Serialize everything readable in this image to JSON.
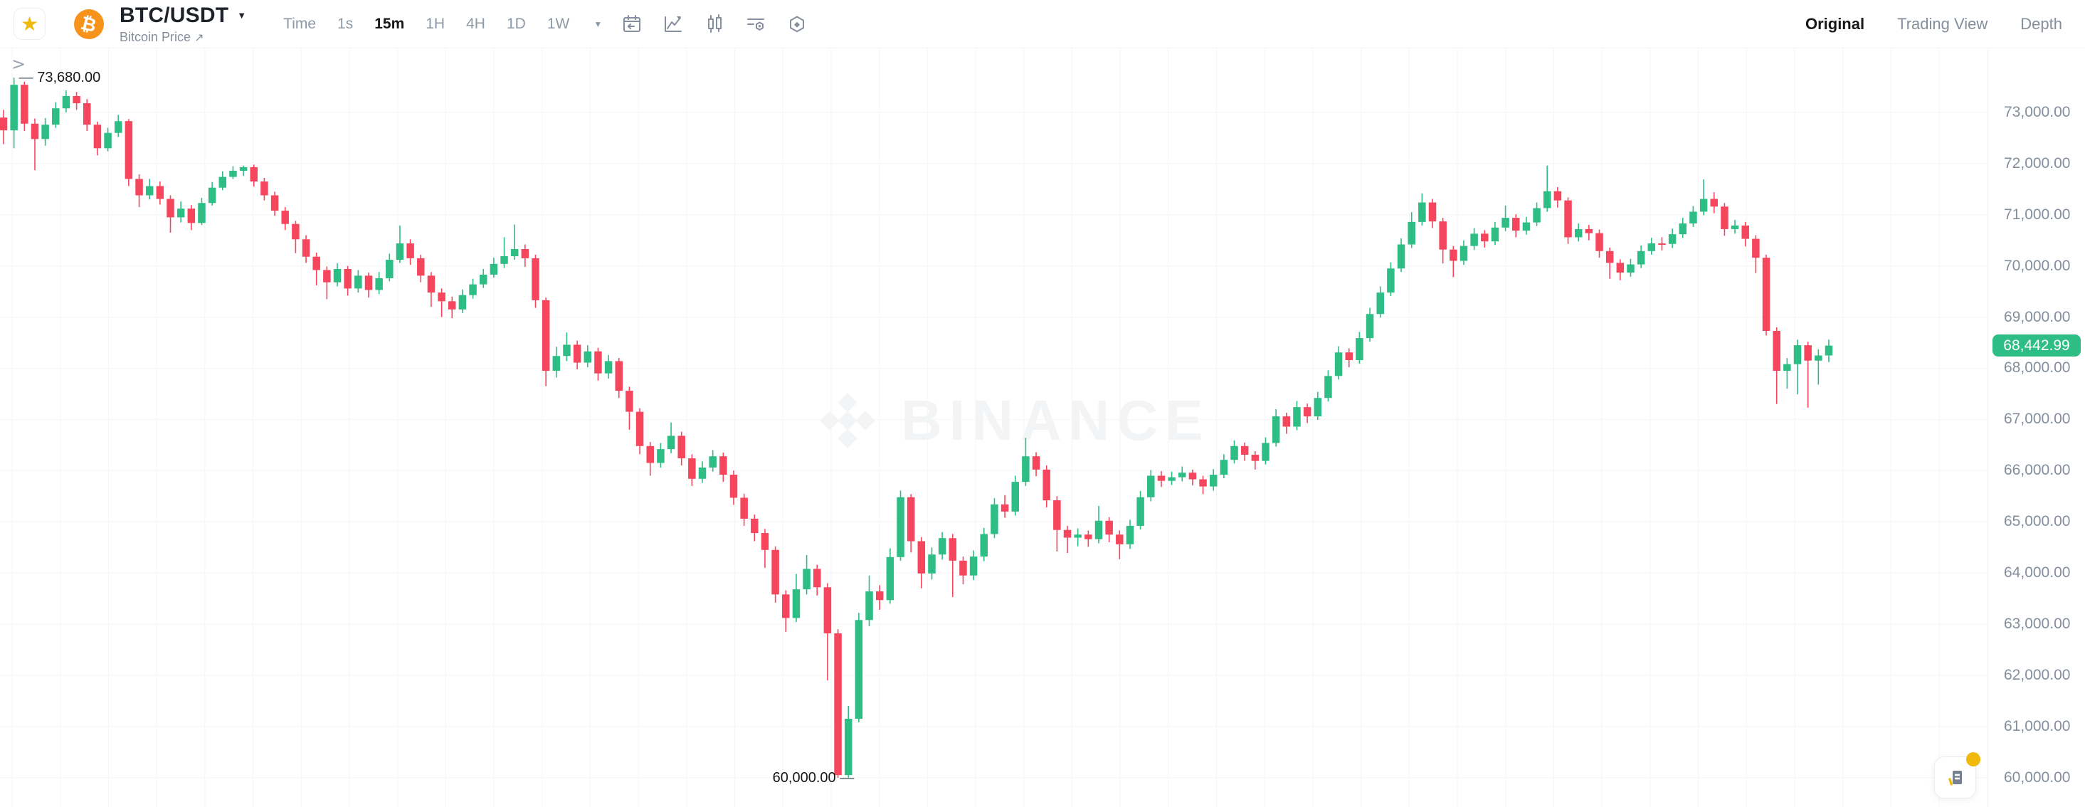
{
  "header": {
    "symbol": "BTC/USDT",
    "subtitle": "Bitcoin Price",
    "subtitle_link_arrow": "↗",
    "favorite_icon": "★",
    "btc_glyph": "₿",
    "dropdown_caret": "▼"
  },
  "toolbar": {
    "time_label": "Time",
    "intervals": [
      "1s",
      "15m",
      "1H",
      "4H",
      "1D",
      "1W"
    ],
    "selected_interval": "15m",
    "more_caret": "▼",
    "icons": [
      "calendar-icon",
      "chart-style-icon",
      "candlestick-icon",
      "indicators-icon",
      "settings-icon"
    ]
  },
  "view_tabs": [
    {
      "label": "Original",
      "active": true
    },
    {
      "label": "Trading View",
      "active": false
    },
    {
      "label": "Depth",
      "active": false
    }
  ],
  "watermark": {
    "text": "BINANCE"
  },
  "expander": {
    "glyph": ">"
  },
  "price_axis": {
    "last_price": 68442.99,
    "last_price_label": "68,442.99",
    "badge_color": "#2EBD85"
  },
  "annotations": {
    "session_high": {
      "label": "73,680.00",
      "marker": "—",
      "price": 73680,
      "candle_index": 1
    },
    "session_low": {
      "label": "60,000.00",
      "marker": "—",
      "price": 60000,
      "candle_index": 81
    }
  },
  "chart_data": {
    "type": "candlestick",
    "symbol": "BTC/USDT",
    "interval": "15m",
    "title": "",
    "xlabel": "",
    "ylabel": "",
    "grid": true,
    "legend": false,
    "up_color": "#2EBD85",
    "down_color": "#F6465D",
    "grid_color": "#f5f5f5",
    "axis_text_color": "#848E9C",
    "ylim": [
      59426,
      75197
    ],
    "y_ticks": [
      73000,
      72000,
      71000,
      70000,
      69000,
      68000,
      67000,
      66000,
      65000,
      64000,
      63000,
      62000,
      61000,
      60000
    ],
    "plot_right": 2794,
    "x_start": 5,
    "x_pitch": 14.657,
    "body_width": 10.5,
    "wick_width": 1.6,
    "grid_x_offset": 17,
    "grid_x_spacing": 67.7,
    "candles": [
      [
        72900,
        73050,
        72380,
        72650
      ],
      [
        72650,
        73680,
        72300,
        73540
      ],
      [
        73540,
        73600,
        72640,
        72780
      ],
      [
        72780,
        72880,
        71870,
        72480
      ],
      [
        72480,
        72890,
        72350,
        72760
      ],
      [
        72760,
        73200,
        72700,
        73080
      ],
      [
        73080,
        73430,
        73000,
        73320
      ],
      [
        73320,
        73400,
        73050,
        73180
      ],
      [
        73180,
        73260,
        72640,
        72760
      ],
      [
        72760,
        72820,
        72160,
        72300
      ],
      [
        72300,
        72700,
        72240,
        72600
      ],
      [
        72600,
        72950,
        72520,
        72830
      ],
      [
        72830,
        72870,
        71560,
        71700
      ],
      [
        71700,
        71790,
        71150,
        71380
      ],
      [
        71380,
        71700,
        71300,
        71560
      ],
      [
        71560,
        71650,
        71200,
        71310
      ],
      [
        71310,
        71380,
        70650,
        70950
      ],
      [
        70950,
        71260,
        70850,
        71120
      ],
      [
        71120,
        71190,
        70700,
        70840
      ],
      [
        70840,
        71330,
        70800,
        71230
      ],
      [
        71230,
        71640,
        71180,
        71530
      ],
      [
        71530,
        71850,
        71480,
        71740
      ],
      [
        71740,
        71950,
        71700,
        71860
      ],
      [
        71860,
        71960,
        71760,
        71930
      ],
      [
        71930,
        71980,
        71550,
        71650
      ],
      [
        71650,
        71720,
        71280,
        71380
      ],
      [
        71380,
        71450,
        70980,
        71080
      ],
      [
        71080,
        71150,
        70700,
        70820
      ],
      [
        70820,
        70880,
        70250,
        70520
      ],
      [
        70520,
        70600,
        70060,
        70180
      ],
      [
        70180,
        70260,
        69620,
        69920
      ],
      [
        69920,
        69990,
        69350,
        69680
      ],
      [
        69680,
        70050,
        69600,
        69940
      ],
      [
        69940,
        70000,
        69420,
        69560
      ],
      [
        69560,
        69920,
        69480,
        69810
      ],
      [
        69810,
        69870,
        69380,
        69530
      ],
      [
        69530,
        69880,
        69450,
        69760
      ],
      [
        69760,
        70240,
        69700,
        70120
      ],
      [
        70120,
        70790,
        70060,
        70440
      ],
      [
        70440,
        70520,
        70020,
        70150
      ],
      [
        70150,
        70220,
        69680,
        69810
      ],
      [
        69810,
        69880,
        69200,
        69480
      ],
      [
        69480,
        69560,
        69000,
        69310
      ],
      [
        69310,
        69400,
        68980,
        69150
      ],
      [
        69150,
        69540,
        69080,
        69430
      ],
      [
        69430,
        69750,
        69360,
        69640
      ],
      [
        69640,
        69940,
        69570,
        69830
      ],
      [
        69830,
        70160,
        69770,
        70040
      ],
      [
        70040,
        70560,
        69960,
        70190
      ],
      [
        70190,
        70810,
        70120,
        70330
      ],
      [
        70330,
        70420,
        69980,
        70150
      ],
      [
        70150,
        70220,
        69180,
        69330
      ],
      [
        69330,
        69380,
        67650,
        67950
      ],
      [
        67950,
        68420,
        67820,
        68240
      ],
      [
        68240,
        68700,
        68140,
        68460
      ],
      [
        68460,
        68540,
        67980,
        68110
      ],
      [
        68110,
        68450,
        68020,
        68330
      ],
      [
        68330,
        68400,
        67760,
        67900
      ],
      [
        67900,
        68260,
        67800,
        68140
      ],
      [
        68140,
        68200,
        67420,
        67560
      ],
      [
        67560,
        67640,
        66800,
        67150
      ],
      [
        67150,
        67220,
        66320,
        66480
      ],
      [
        66480,
        66560,
        65900,
        66150
      ],
      [
        66150,
        66540,
        66060,
        66420
      ],
      [
        66420,
        66940,
        66340,
        66680
      ],
      [
        66680,
        66760,
        66100,
        66240
      ],
      [
        66240,
        66320,
        65700,
        65840
      ],
      [
        65840,
        66180,
        65760,
        66060
      ],
      [
        66060,
        66400,
        65980,
        66280
      ],
      [
        66280,
        66350,
        65780,
        65920
      ],
      [
        65920,
        66000,
        65330,
        65470
      ],
      [
        65470,
        65550,
        64920,
        65060
      ],
      [
        65060,
        65140,
        64620,
        64780
      ],
      [
        64780,
        64860,
        64100,
        64450
      ],
      [
        64450,
        64520,
        63420,
        63580
      ],
      [
        63580,
        63660,
        62850,
        63120
      ],
      [
        63120,
        63980,
        63040,
        63680
      ],
      [
        63680,
        64350,
        63580,
        64080
      ],
      [
        64080,
        64160,
        63560,
        63720
      ],
      [
        63720,
        63800,
        61900,
        62820
      ],
      [
        62820,
        62900,
        60000,
        60050
      ],
      [
        60050,
        61400,
        60000,
        61150
      ],
      [
        61150,
        63220,
        61080,
        63080
      ],
      [
        63080,
        63950,
        62960,
        63640
      ],
      [
        63640,
        63760,
        63280,
        63470
      ],
      [
        63470,
        64480,
        63400,
        64310
      ],
      [
        64310,
        65610,
        64240,
        65480
      ],
      [
        65480,
        65540,
        64400,
        64620
      ],
      [
        64620,
        64700,
        63700,
        63990
      ],
      [
        63990,
        64500,
        63870,
        64360
      ],
      [
        64360,
        64800,
        64260,
        64680
      ],
      [
        64680,
        64760,
        63530,
        64240
      ],
      [
        64240,
        64320,
        63780,
        63950
      ],
      [
        63950,
        64440,
        63860,
        64320
      ],
      [
        64320,
        64880,
        64230,
        64760
      ],
      [
        64760,
        65460,
        64680,
        65340
      ],
      [
        65340,
        65520,
        65080,
        65200
      ],
      [
        65200,
        65900,
        65120,
        65780
      ],
      [
        65780,
        66640,
        65700,
        66280
      ],
      [
        66280,
        66360,
        65890,
        66020
      ],
      [
        66020,
        66100,
        65280,
        65420
      ],
      [
        65420,
        65500,
        64420,
        64840
      ],
      [
        64840,
        64920,
        64390,
        64690
      ],
      [
        64690,
        64870,
        64520,
        64750
      ],
      [
        64750,
        64830,
        64510,
        64660
      ],
      [
        64660,
        65310,
        64580,
        65020
      ],
      [
        65020,
        65090,
        64600,
        64750
      ],
      [
        64750,
        64830,
        64270,
        64560
      ],
      [
        64560,
        65040,
        64470,
        64920
      ],
      [
        64920,
        65600,
        64850,
        65480
      ],
      [
        65480,
        66010,
        65400,
        65900
      ],
      [
        65900,
        65990,
        65680,
        65800
      ],
      [
        65800,
        65980,
        65720,
        65870
      ],
      [
        65870,
        66080,
        65790,
        65960
      ],
      [
        65960,
        66020,
        65710,
        65830
      ],
      [
        65830,
        65900,
        65540,
        65690
      ],
      [
        65690,
        66030,
        65610,
        65920
      ],
      [
        65920,
        66320,
        65850,
        66210
      ],
      [
        66210,
        66590,
        66140,
        66480
      ],
      [
        66480,
        66550,
        66190,
        66310
      ],
      [
        66310,
        66380,
        66020,
        66190
      ],
      [
        66190,
        66650,
        66120,
        66540
      ],
      [
        66540,
        67200,
        66470,
        67060
      ],
      [
        67060,
        67130,
        66720,
        66860
      ],
      [
        66860,
        67360,
        66790,
        67240
      ],
      [
        67240,
        67310,
        66930,
        67060
      ],
      [
        67060,
        67540,
        66990,
        67420
      ],
      [
        67420,
        67960,
        67350,
        67850
      ],
      [
        67850,
        68430,
        67780,
        68310
      ],
      [
        68310,
        68390,
        68020,
        68160
      ],
      [
        68160,
        68710,
        68090,
        68590
      ],
      [
        68590,
        69180,
        68520,
        69060
      ],
      [
        69060,
        69600,
        68990,
        69480
      ],
      [
        69480,
        70070,
        69410,
        69950
      ],
      [
        69950,
        70540,
        69880,
        70420
      ],
      [
        70420,
        71050,
        70350,
        70860
      ],
      [
        70860,
        71420,
        70790,
        71240
      ],
      [
        71240,
        71310,
        70740,
        70870
      ],
      [
        70870,
        70940,
        70050,
        70320
      ],
      [
        70320,
        70390,
        69780,
        70100
      ],
      [
        70100,
        70500,
        70020,
        70390
      ],
      [
        70390,
        70740,
        70310,
        70630
      ],
      [
        70630,
        70700,
        70360,
        70480
      ],
      [
        70480,
        70860,
        70410,
        70750
      ],
      [
        70750,
        71180,
        70680,
        70940
      ],
      [
        70940,
        71010,
        70560,
        70690
      ],
      [
        70690,
        70960,
        70610,
        70850
      ],
      [
        70850,
        71240,
        70780,
        71130
      ],
      [
        71130,
        71960,
        71060,
        71460
      ],
      [
        71460,
        71540,
        71140,
        71280
      ],
      [
        71280,
        71340,
        70430,
        70560
      ],
      [
        70560,
        70830,
        70480,
        70720
      ],
      [
        70720,
        70800,
        70500,
        70640
      ],
      [
        70640,
        70710,
        70160,
        70290
      ],
      [
        70290,
        70360,
        69750,
        70060
      ],
      [
        70060,
        70130,
        69720,
        69870
      ],
      [
        69870,
        70140,
        69790,
        70030
      ],
      [
        70030,
        70400,
        69960,
        70290
      ],
      [
        70290,
        70550,
        70220,
        70440
      ],
      [
        70440,
        70560,
        70300,
        70430
      ],
      [
        70430,
        70730,
        70350,
        70620
      ],
      [
        70620,
        70940,
        70550,
        70830
      ],
      [
        70830,
        71170,
        70760,
        71060
      ],
      [
        71060,
        71690,
        70990,
        71310
      ],
      [
        71310,
        71440,
        71030,
        71160
      ],
      [
        71160,
        71230,
        70590,
        70720
      ],
      [
        70720,
        70900,
        70630,
        70790
      ],
      [
        70790,
        70860,
        70380,
        70530
      ],
      [
        70530,
        70600,
        69860,
        70160
      ],
      [
        70160,
        70220,
        68640,
        68730
      ],
      [
        68730,
        68800,
        67300,
        67950
      ],
      [
        67950,
        68200,
        67600,
        68080
      ],
      [
        68080,
        68560,
        67490,
        68450
      ],
      [
        68450,
        68520,
        67230,
        68150
      ],
      [
        68150,
        68370,
        67680,
        68250
      ],
      [
        68250,
        68560,
        68120,
        68442.99
      ]
    ]
  }
}
